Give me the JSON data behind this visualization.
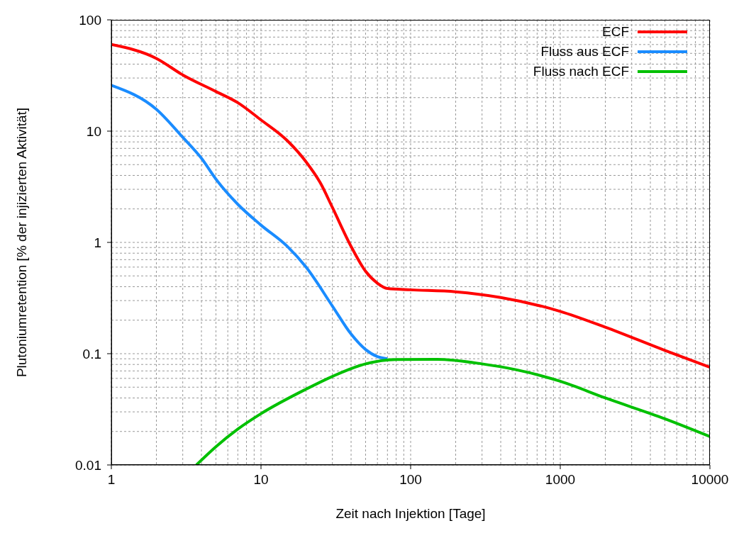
{
  "chart_data": {
    "type": "line",
    "xlabel": "Zeit nach Injektion [Tage]",
    "ylabel": "Plutoniumretention [% der injizierten Aktivität]",
    "log": "xy",
    "xlim": [
      1,
      10000
    ],
    "ylim": [
      0.01,
      100
    ],
    "xticks": [
      1,
      10,
      100,
      1000,
      10000
    ],
    "yticks": [
      0.01,
      0.1,
      1,
      10,
      100
    ],
    "grid": true,
    "legend": "top right",
    "line_style": "solid",
    "marker": "none",
    "series": [
      {
        "name": "ECF",
        "color": "#ff0000",
        "x": [
          1,
          2,
          3,
          5,
          7,
          10,
          15,
          20,
          25,
          30,
          40,
          50,
          60,
          70,
          100,
          200,
          400,
          1000,
          2000,
          5000,
          10000
        ],
        "values": [
          60,
          45,
          32,
          22.7,
          18,
          12.6,
          8.2,
          5.3,
          3.4,
          2.06,
          0.92,
          0.55,
          0.43,
          0.385,
          0.375,
          0.36,
          0.32,
          0.24,
          0.173,
          0.107,
          0.0755
        ]
      },
      {
        "name": "Fluss aus ECF",
        "color": "#1a8cff",
        "x": [
          1,
          2,
          3,
          4,
          5,
          7,
          10,
          15,
          20,
          30,
          40,
          50,
          60,
          70
        ],
        "values": [
          25.8,
          15.7,
          8.8,
          5.7,
          3.7,
          2.2,
          1.43,
          0.92,
          0.6,
          0.268,
          0.15,
          0.109,
          0.094,
          0.09
        ]
      },
      {
        "name": "Fluss nach ECF",
        "color": "#00c000",
        "x": [
          3.7,
          5,
          7,
          10,
          20,
          30,
          50,
          80,
          150,
          300,
          500,
          1000,
          2000,
          5000,
          10000
        ],
        "values": [
          0.01,
          0.0146,
          0.021,
          0.0289,
          0.048,
          0.0625,
          0.081,
          0.0887,
          0.089,
          0.081,
          0.072,
          0.0565,
          0.04,
          0.026,
          0.018
        ]
      }
    ]
  }
}
